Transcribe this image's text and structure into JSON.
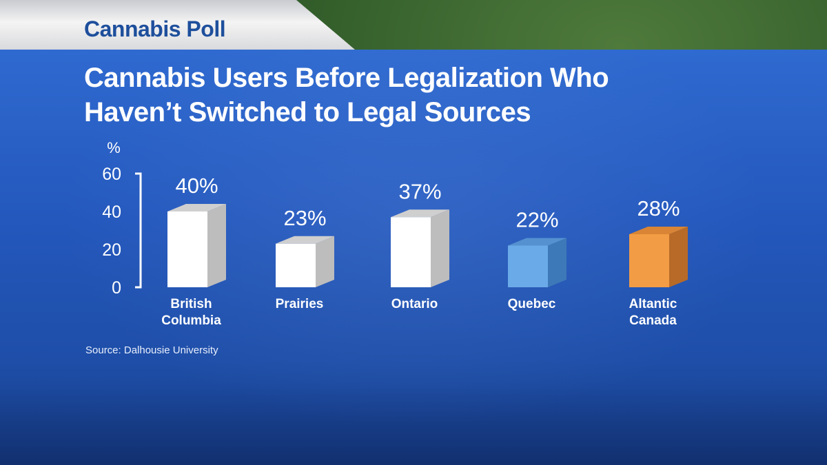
{
  "header": {
    "tab_title": "Cannabis Poll"
  },
  "chart_data": {
    "type": "bar",
    "title": "Cannabis Users Before Legalization Who Haven’t Switched to Legal Sources",
    "title_lines": [
      "Cannabis Users Before Legalization Who",
      "Haven’t Switched to Legal Sources"
    ],
    "ylabel": "%",
    "ylim": [
      0,
      60
    ],
    "yticks": [
      "0",
      "20",
      "40",
      "60"
    ],
    "grid": false,
    "categories": [
      [
        "British",
        "Columbia"
      ],
      [
        "Prairies"
      ],
      [
        "Ontario"
      ],
      [
        "Quebec"
      ],
      [
        "Altantic",
        "Canada"
      ]
    ],
    "values": [
      40,
      23,
      37,
      22,
      28
    ],
    "data_labels": [
      "40%",
      "23%",
      "37%",
      "22%",
      "28%"
    ],
    "colors": [
      {
        "front": "#ffffff",
        "side": "#bdbdbd",
        "top": "#cfcfcf"
      },
      {
        "front": "#ffffff",
        "side": "#bdbdbd",
        "top": "#cfcfcf"
      },
      {
        "front": "#ffffff",
        "side": "#bdbdbd",
        "top": "#cfcfcf"
      },
      {
        "front": "#6aaae8",
        "side": "#3d78b8",
        "top": "#5591d0"
      },
      {
        "front": "#f29c45",
        "side": "#b86a28",
        "top": "#d98535"
      }
    ]
  },
  "footer": {
    "source": "Source: Dalhousie University"
  }
}
